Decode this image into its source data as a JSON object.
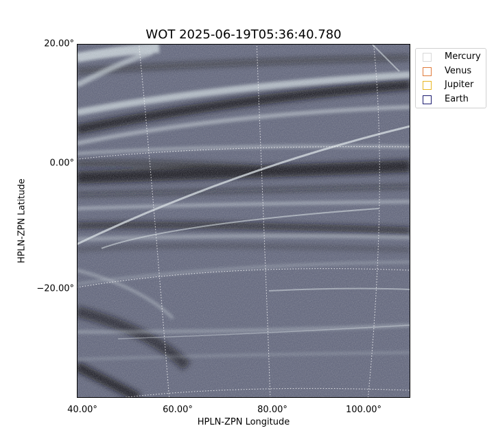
{
  "title": "WOT 2025-06-19T05:36:40.780",
  "axes": {
    "xlabel": "HPLN-ZPN Longitude",
    "ylabel": "HPLN-ZPN Latitude",
    "x_ticks": [
      "40.00°",
      "60.00°",
      "80.00°",
      "100.00°"
    ],
    "y_ticks": [
      "20.00°",
      "0.00°",
      "−20.00°"
    ]
  },
  "legend": [
    {
      "label": "Mercury",
      "color": "#d8d8d8"
    },
    {
      "label": "Venus",
      "color": "#e07a3a"
    },
    {
      "label": "Jupiter",
      "color": "#e8b520"
    },
    {
      "label": "Earth",
      "color": "#1a1a6e"
    }
  ],
  "colors": {
    "image_base": "#5a5f78",
    "streak_light": "#c9d4dc",
    "streak_dark": "#0c0f16"
  }
}
